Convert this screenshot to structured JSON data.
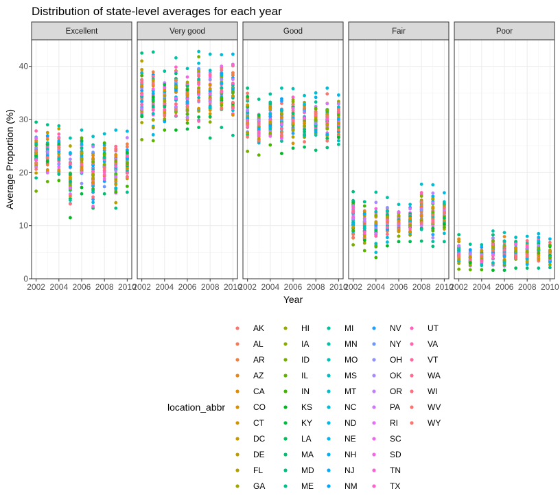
{
  "chart_data": {
    "type": "scatter",
    "title": "Distribution of state-level averages for each year",
    "xlabel": "Year",
    "ylabel": "Average Proportion (%)",
    "xlim": [
      2001.6,
      2010.4
    ],
    "ylim": [
      0,
      45
    ],
    "x_ticks": [
      2002,
      2004,
      2006,
      2008,
      2010
    ],
    "x_tick_labels": [
      "2002",
      "2004",
      "2006",
      "2008",
      "2010"
    ],
    "y_ticks": [
      0,
      10,
      20,
      30,
      40
    ],
    "y_tick_labels": [
      "0",
      "10",
      "20",
      "30",
      "40"
    ],
    "grid": true,
    "legend_title": "location_abbr",
    "legend_placement": "bottom",
    "states": [
      "AK",
      "AL",
      "AR",
      "AZ",
      "CA",
      "CO",
      "CT",
      "DC",
      "DE",
      "FL",
      "GA",
      "HI",
      "IA",
      "ID",
      "IL",
      "IN",
      "KS",
      "KY",
      "LA",
      "MA",
      "MD",
      "ME",
      "MI",
      "MN",
      "MO",
      "MS",
      "MT",
      "NC",
      "ND",
      "NE",
      "NH",
      "NJ",
      "NM",
      "NV",
      "NY",
      "OH",
      "OK",
      "OR",
      "PA",
      "RI",
      "SC",
      "SD",
      "TN",
      "TX",
      "UT",
      "VA",
      "VT",
      "WA",
      "WI",
      "WV",
      "WY"
    ],
    "state_colors": [
      "#F8766D",
      "#F37B59",
      "#ED8141",
      "#E7861B",
      "#E08B00",
      "#D89000",
      "#CF9400",
      "#C59900",
      "#BB9D00",
      "#B0A100",
      "#A3A500",
      "#95A900",
      "#86AC00",
      "#74AF00",
      "#5EB300",
      "#41B500",
      "#00B81F",
      "#00BA42",
      "#00BC59",
      "#00BE6C",
      "#00BF7D",
      "#00C08D",
      "#00C19C",
      "#00C1AA",
      "#00C0B8",
      "#00BFC4",
      "#00BDD0",
      "#00BBDB",
      "#00B8E5",
      "#00B4EF",
      "#00B0F6",
      "#00ABFD",
      "#00A5FF",
      "#1F9FFF",
      "#6A98FF",
      "#8F91FF",
      "#AB88FF",
      "#C17FFF",
      "#D376FF",
      "#E26EF7",
      "#ED68ED",
      "#F564E3",
      "#FB61D7",
      "#FF61CA",
      "#FF62BC",
      "#FF64AE",
      "#FF679F",
      "#FF6C90",
      "#FE6F80",
      "#FC7370",
      "#F8766D"
    ],
    "panels": [
      {
        "label": "Excellent",
        "years": [
          {
            "year": 2002,
            "min": 16.5,
            "max": 29.5
          },
          {
            "year": 2003,
            "min": 18.3,
            "max": 29.0
          },
          {
            "year": 2004,
            "min": 18.5,
            "max": 28.8
          },
          {
            "year": 2005,
            "min": 11.5,
            "max": 26.5
          },
          {
            "year": 2006,
            "min": 16.0,
            "max": 28.0
          },
          {
            "year": 2007,
            "min": 13.3,
            "max": 26.8
          },
          {
            "year": 2008,
            "min": 16.0,
            "max": 27.3
          },
          {
            "year": 2009,
            "min": 13.3,
            "max": 28.0
          },
          {
            "year": 2010,
            "min": 16.3,
            "max": 27.8
          }
        ]
      },
      {
        "label": "Very good",
        "years": [
          {
            "year": 2002,
            "min": 26.2,
            "max": 42.5
          },
          {
            "year": 2003,
            "min": 26.0,
            "max": 42.7
          },
          {
            "year": 2004,
            "min": 28.0,
            "max": 39.1
          },
          {
            "year": 2005,
            "min": 28.0,
            "max": 41.6
          },
          {
            "year": 2006,
            "min": 28.2,
            "max": 39.6
          },
          {
            "year": 2007,
            "min": 28.5,
            "max": 42.8
          },
          {
            "year": 2008,
            "min": 26.5,
            "max": 42.3
          },
          {
            "year": 2009,
            "min": 28.5,
            "max": 42.2
          },
          {
            "year": 2010,
            "min": 27.0,
            "max": 42.3
          }
        ]
      },
      {
        "label": "Good",
        "years": [
          {
            "year": 2002,
            "min": 24.0,
            "max": 35.9
          },
          {
            "year": 2003,
            "min": 23.3,
            "max": 33.8
          },
          {
            "year": 2004,
            "min": 25.2,
            "max": 34.8
          },
          {
            "year": 2005,
            "min": 23.6,
            "max": 35.9
          },
          {
            "year": 2006,
            "min": 24.6,
            "max": 35.8
          },
          {
            "year": 2007,
            "min": 24.8,
            "max": 34.5
          },
          {
            "year": 2008,
            "min": 24.2,
            "max": 35.0
          },
          {
            "year": 2009,
            "min": 24.7,
            "max": 35.9
          },
          {
            "year": 2010,
            "min": 25.3,
            "max": 34.6
          }
        ]
      },
      {
        "label": "Fair",
        "years": [
          {
            "year": 2002,
            "min": 6.4,
            "max": 16.4
          },
          {
            "year": 2003,
            "min": 5.3,
            "max": 14.5
          },
          {
            "year": 2004,
            "min": 4.0,
            "max": 16.3
          },
          {
            "year": 2005,
            "min": 6.2,
            "max": 15.3
          },
          {
            "year": 2006,
            "min": 7.0,
            "max": 14.0
          },
          {
            "year": 2007,
            "min": 7.0,
            "max": 14.0
          },
          {
            "year": 2008,
            "min": 7.1,
            "max": 17.8
          },
          {
            "year": 2009,
            "min": 6.1,
            "max": 17.7
          },
          {
            "year": 2010,
            "min": 7.0,
            "max": 16.2
          }
        ]
      },
      {
        "label": "Poor",
        "years": [
          {
            "year": 2002,
            "min": 1.8,
            "max": 8.3
          },
          {
            "year": 2003,
            "min": 1.7,
            "max": 6.5
          },
          {
            "year": 2004,
            "min": 1.7,
            "max": 6.4
          },
          {
            "year": 2005,
            "min": 1.6,
            "max": 9.0
          },
          {
            "year": 2006,
            "min": 1.6,
            "max": 8.7
          },
          {
            "year": 2007,
            "min": 2.0,
            "max": 7.8
          },
          {
            "year": 2008,
            "min": 2.0,
            "max": 8.0
          },
          {
            "year": 2009,
            "min": 2.0,
            "max": 8.5
          },
          {
            "year": 2010,
            "min": 2.1,
            "max": 7.5
          }
        ]
      }
    ]
  }
}
